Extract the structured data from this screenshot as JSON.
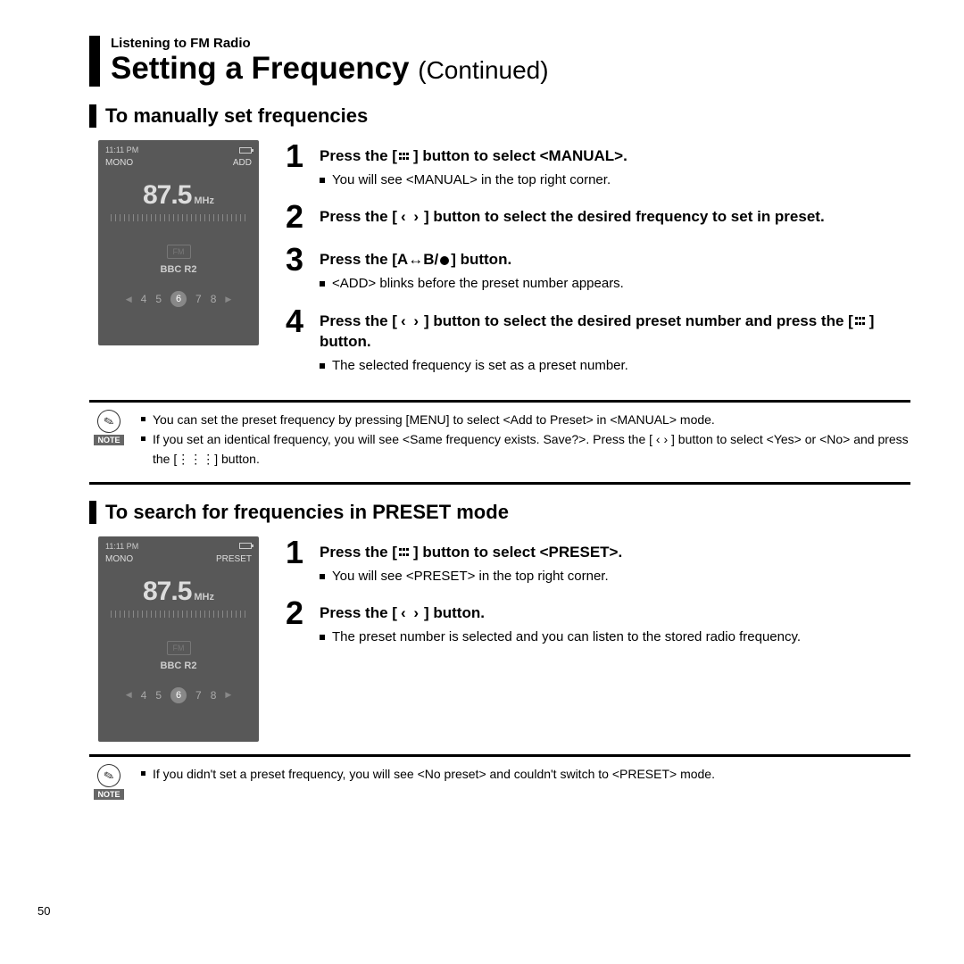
{
  "page_number": "50",
  "header": {
    "section": "Listening to FM Radio",
    "title": "Setting a Frequency",
    "continued": "(Continued)"
  },
  "section1": {
    "heading": "To manually set frequencies",
    "screen": {
      "time": "11:11 PM",
      "mono": "MONO",
      "mode": "ADD",
      "freq": "87.5",
      "unit": "MHz",
      "fm": "FM",
      "station": "BBC R2",
      "presets": [
        "4",
        "5",
        "6",
        "7",
        "8"
      ]
    },
    "steps": [
      {
        "n": "1",
        "title_a": "Press the [",
        "title_b": "] button to select <MANUAL>.",
        "sub": "You will see <MANUAL> in the top right corner."
      },
      {
        "n": "2",
        "title_a": "Press the [",
        "title_arrows": "‹  ›",
        "title_b": "] button to select the desired frequency to set in preset."
      },
      {
        "n": "3",
        "title_a": "Press the [A",
        "title_ab": "↔",
        "title_b": "B/",
        "title_c": "] button.",
        "sub": "<ADD> blinks before the preset number appears."
      },
      {
        "n": "4",
        "title_a": "Press the [",
        "title_arrows": "‹  ›",
        "title_b": "] button to select the desired preset number and press the [",
        "title_c": "] button.",
        "sub": "The selected frequency is set as a preset number."
      }
    ],
    "notes": [
      "You can set the preset frequency by pressing [MENU] to select <Add to Preset> in <MANUAL> mode.",
      "If you set an identical frequency, you will see <Same frequency exists. Save?>. Press the [ ‹  › ] button to select <Yes> or <No> and press the [⋮⋮⋮] button."
    ]
  },
  "section2": {
    "heading": "To search for frequencies in PRESET mode",
    "screen": {
      "time": "11:11 PM",
      "mono": "MONO",
      "mode": "PRESET",
      "freq": "87.5",
      "unit": "MHz",
      "fm": "FM",
      "station": "BBC R2",
      "presets": [
        "4",
        "5",
        "6",
        "7",
        "8"
      ]
    },
    "steps": [
      {
        "n": "1",
        "title_a": "Press the [",
        "title_b": "] button to select <PRESET>.",
        "sub": "You will see <PRESET> in the top right corner."
      },
      {
        "n": "2",
        "title_a": "Press the [",
        "title_arrows": "‹  ›",
        "title_b": "] button.",
        "sub": "The preset number is selected and you can listen to the stored radio frequency."
      }
    ],
    "notes": [
      "If you didn't set a preset frequency, you will see <No preset> and couldn't switch to <PRESET> mode."
    ]
  },
  "note_label": "NOTE"
}
